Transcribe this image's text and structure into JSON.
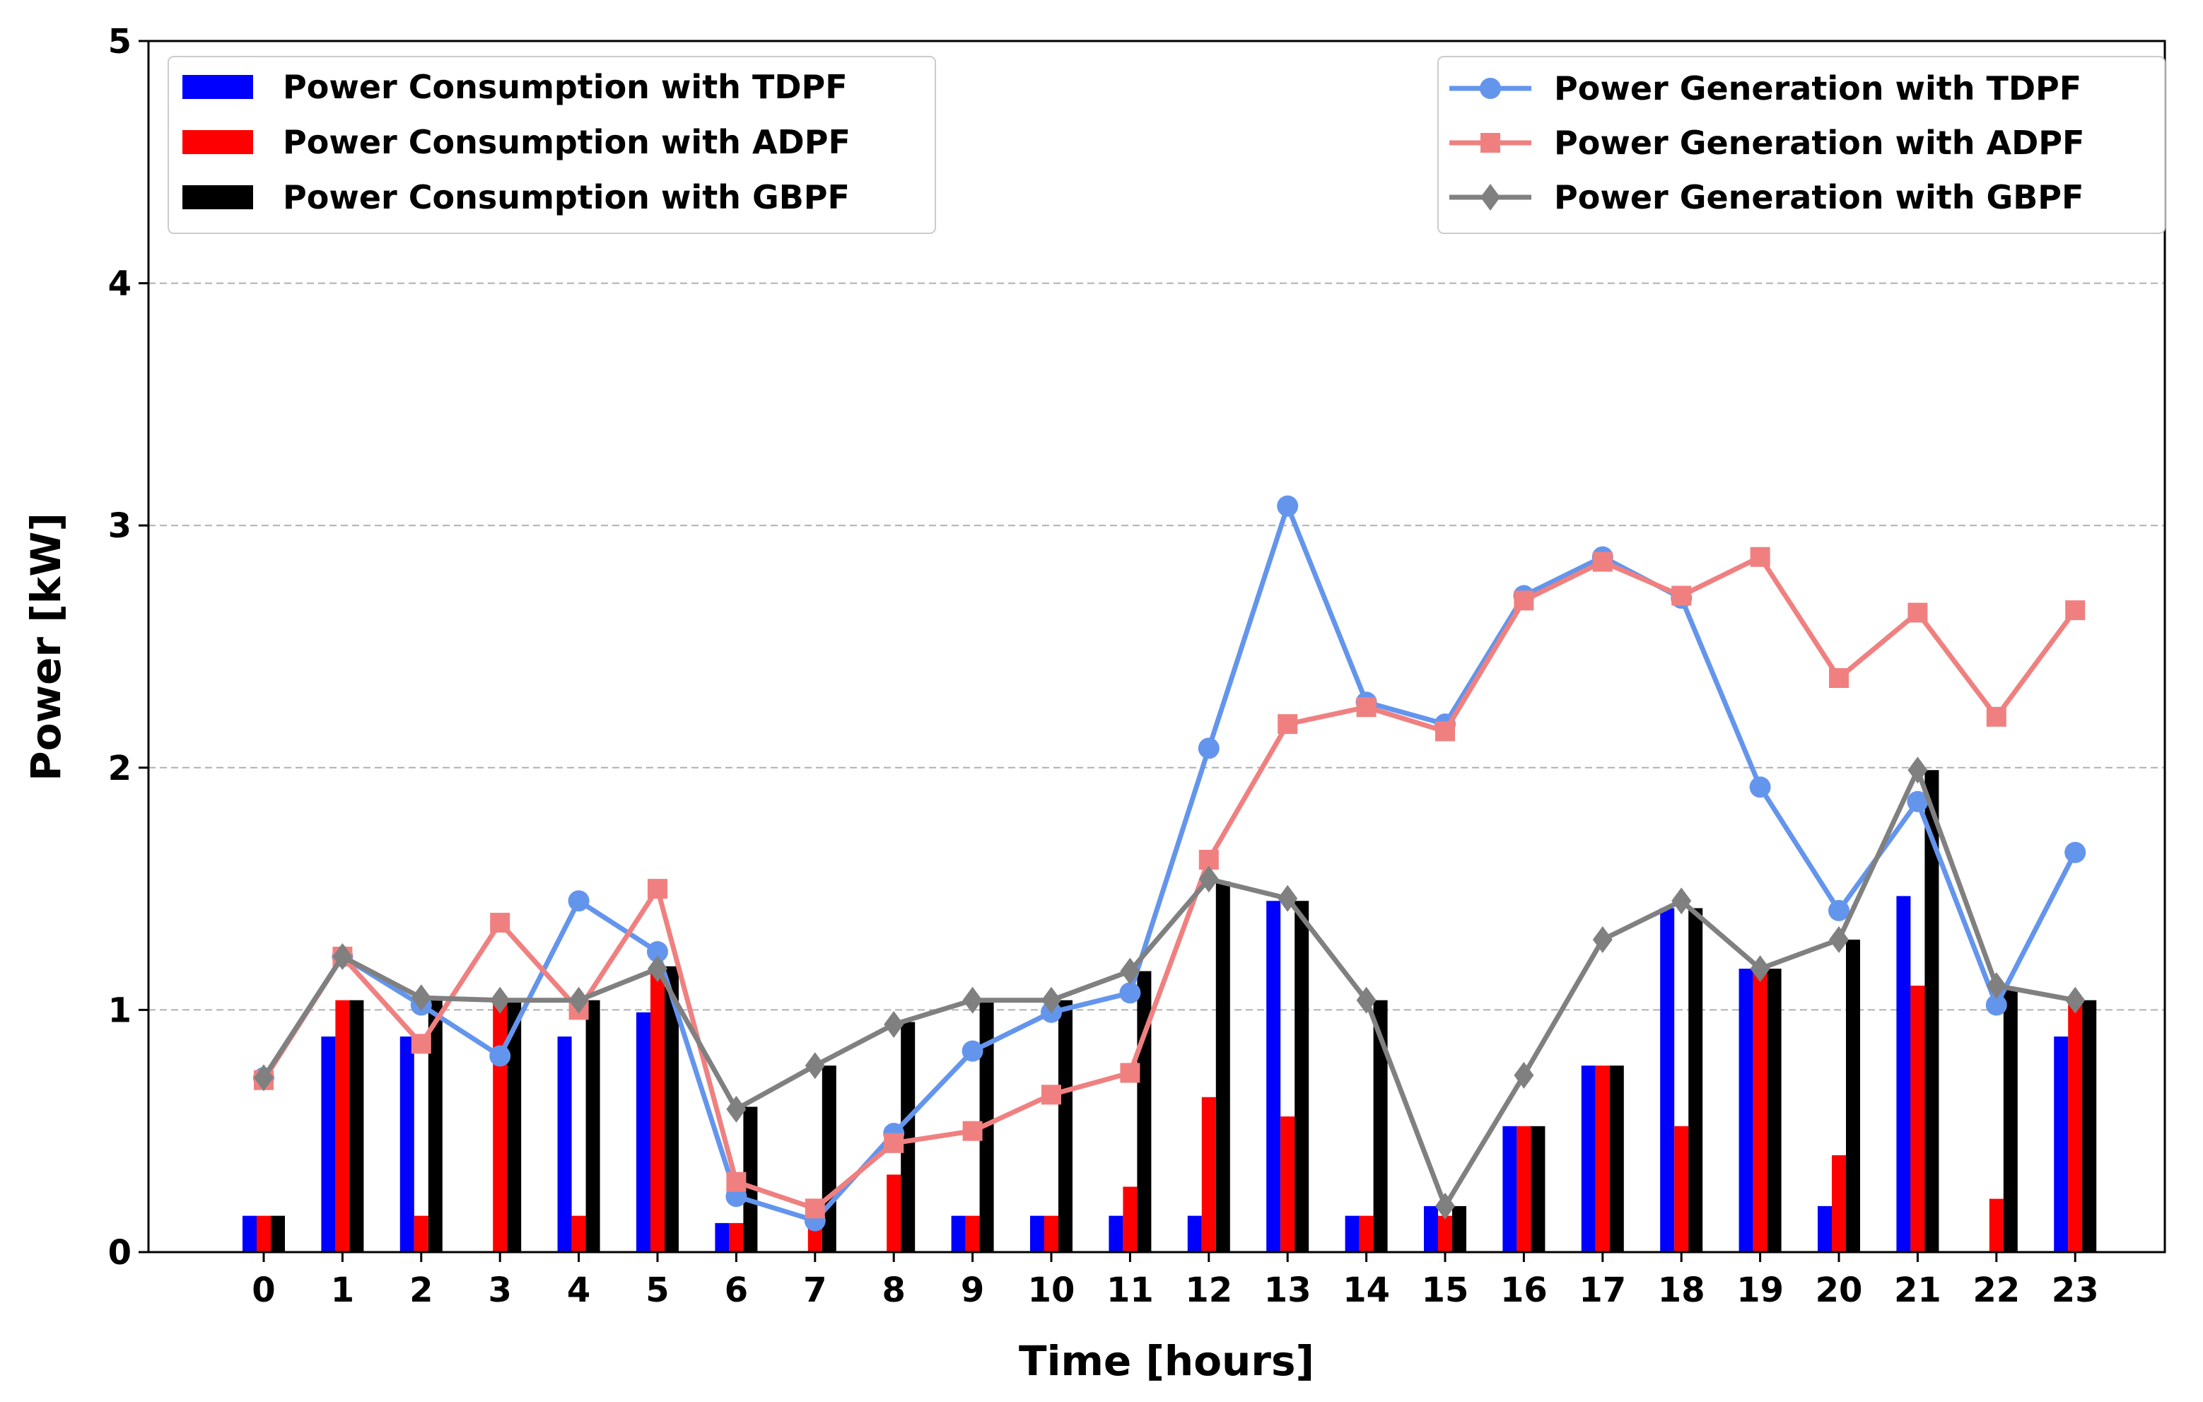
{
  "chart_data": {
    "type": "bar",
    "xlabel": "Time [hours]",
    "ylabel": "Power [kW]",
    "ylim": [
      0,
      5
    ],
    "yticks": [
      "0",
      "1",
      "2",
      "3",
      "4",
      "5"
    ],
    "grid": "horizontal dashed",
    "categories": [
      "0",
      "1",
      "2",
      "3",
      "4",
      "5",
      "6",
      "7",
      "8",
      "9",
      "10",
      "11",
      "12",
      "13",
      "14",
      "15",
      "16",
      "17",
      "18",
      "19",
      "20",
      "21",
      "22",
      "23"
    ],
    "bar_series": [
      {
        "name": "Power Consumption with TDPF",
        "color": "#0000ff",
        "values": [
          0.15,
          0.89,
          0.89,
          0,
          0.89,
          0.99,
          0.12,
          0,
          0,
          0.15,
          0.15,
          0.15,
          0.15,
          1.45,
          0.15,
          0.19,
          0.52,
          0.77,
          1.42,
          1.17,
          0.19,
          1.47,
          0,
          0.89
        ]
      },
      {
        "name": "Power Consumption with ADPF",
        "color": "#ff0000",
        "values": [
          0.15,
          1.04,
          0.15,
          1.04,
          0.15,
          1.18,
          0.12,
          0.18,
          0.32,
          0.15,
          0.15,
          0.27,
          0.64,
          0.56,
          0.15,
          0.15,
          0.52,
          0.77,
          0.52,
          1.17,
          0.4,
          1.1,
          0.22,
          1.04
        ]
      },
      {
        "name": "Power Consumption with GBPF",
        "color": "#000000",
        "values": [
          0.15,
          1.04,
          1.05,
          1.04,
          1.04,
          1.18,
          0.6,
          0.77,
          0.95,
          1.04,
          1.04,
          1.16,
          1.53,
          1.45,
          1.04,
          0.19,
          0.52,
          0.77,
          1.42,
          1.17,
          1.29,
          1.99,
          1.09,
          1.04
        ]
      }
    ],
    "line_series": [
      {
        "name": "Power Generation with TDPF",
        "color": "#6495ed",
        "marker": "circle",
        "values": [
          0.72,
          1.22,
          1.02,
          0.81,
          1.45,
          1.24,
          0.23,
          0.13,
          0.49,
          0.83,
          0.99,
          1.07,
          2.08,
          3.08,
          2.27,
          2.18,
          2.71,
          2.87,
          2.7,
          1.92,
          1.41,
          1.86,
          1.02,
          1.65
        ]
      },
      {
        "name": "Power Generation with ADPF",
        "color": "#f08080",
        "marker": "square",
        "values": [
          0.71,
          1.22,
          0.86,
          1.36,
          1.0,
          1.5,
          0.29,
          0.18,
          0.45,
          0.5,
          0.65,
          0.74,
          1.62,
          2.18,
          2.25,
          2.15,
          2.69,
          2.85,
          2.71,
          2.87,
          2.37,
          2.64,
          2.21,
          2.65
        ]
      },
      {
        "name": "Power Generation with GBPF",
        "color": "#808080",
        "marker": "diamond",
        "values": [
          0.72,
          1.22,
          1.05,
          1.04,
          1.04,
          1.17,
          0.59,
          0.77,
          0.94,
          1.04,
          1.04,
          1.16,
          1.54,
          1.46,
          1.04,
          0.19,
          0.73,
          1.29,
          1.45,
          1.17,
          1.29,
          1.99,
          1.1,
          1.04
        ]
      }
    ],
    "legend_bars_placement": "top-left",
    "legend_lines_placement": "top-right"
  }
}
